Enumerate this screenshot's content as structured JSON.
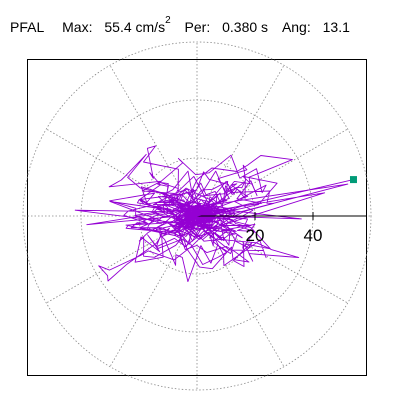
{
  "header": {
    "station": "PFAL",
    "max_label": "Max:",
    "max_value": "55.4",
    "max_unit": "cm/s",
    "max_unit_exp": "2",
    "period_label": "Per:",
    "period_value": "0.380 s",
    "angle_label": "Ang:",
    "angle_value": "13.1"
  },
  "chart_data": {
    "type": "line",
    "projection": "polar",
    "title": "",
    "rings": [
      20,
      40,
      60
    ],
    "ring_labels": [
      "20",
      "40"
    ],
    "spoke_step_deg": 30,
    "radial_axis_direction_deg": 0,
    "grid": "dotted",
    "max_radius": 55.4,
    "max_angle_deg": 13.1,
    "trace_color": "#9400d3",
    "marker_color": "#009b77",
    "marker": {
      "r": 55.4,
      "theta_deg": 13.1
    }
  }
}
